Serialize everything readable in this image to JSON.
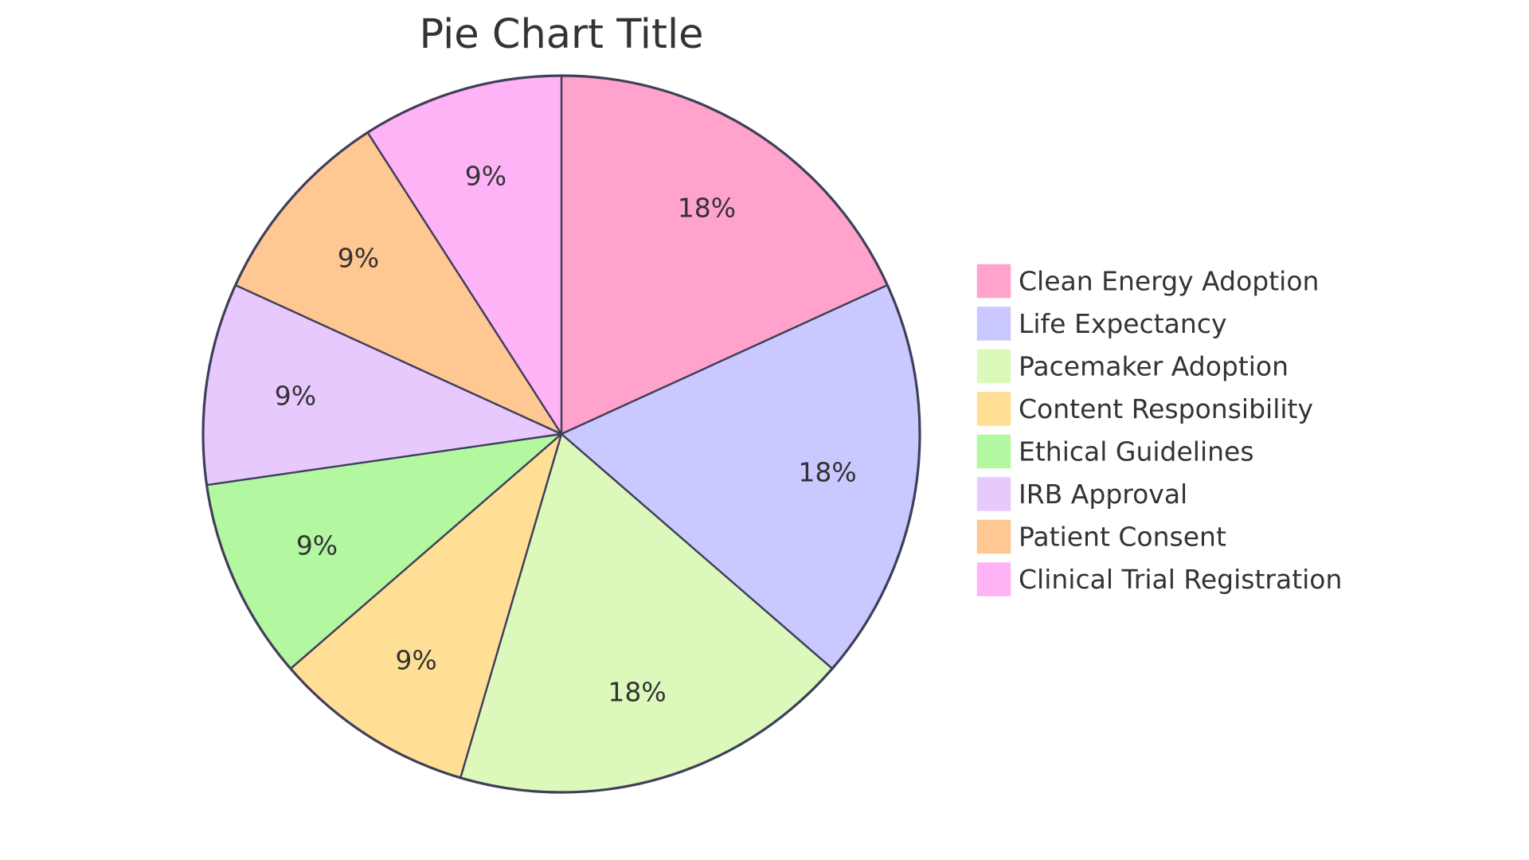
{
  "chart_data": {
    "type": "pie",
    "title": "Pie Chart Title",
    "legend_position": "right",
    "slices": [
      {
        "label": "Clean Energy Adoption",
        "value": 2,
        "percent_label": "18%",
        "color": "#ffa3cc"
      },
      {
        "label": "Life Expectancy",
        "value": 2,
        "percent_label": "18%",
        "color": "#c9c9ff"
      },
      {
        "label": "Pacemaker Adoption",
        "value": 2,
        "percent_label": "18%",
        "color": "#dcf9bb"
      },
      {
        "label": "Content Responsibility",
        "value": 1,
        "percent_label": "9%",
        "color": "#ffdf96"
      },
      {
        "label": "Ethical Guidelines",
        "value": 1,
        "percent_label": "9%",
        "color": "#b3f7a0"
      },
      {
        "label": "IRB Approval",
        "value": 1,
        "percent_label": "9%",
        "color": "#e8c9fe"
      },
      {
        "label": "Patient Consent",
        "value": 1,
        "percent_label": "9%",
        "color": "#ffc792"
      },
      {
        "label": "Clinical Trial Registration",
        "value": 1,
        "percent_label": "9%",
        "color": "#ffb3f7"
      }
    ]
  }
}
